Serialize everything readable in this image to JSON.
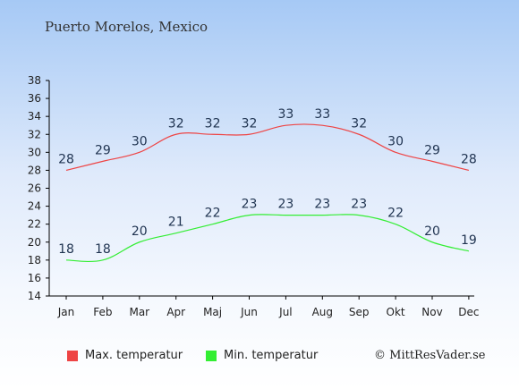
{
  "chart_data": {
    "type": "line",
    "title": "Puerto Morelos, Mexico",
    "categories": [
      "Jan",
      "Feb",
      "Mar",
      "Apr",
      "Maj",
      "Jun",
      "Jul",
      "Aug",
      "Sep",
      "Okt",
      "Nov",
      "Dec"
    ],
    "series": [
      {
        "name": "Max. temperatur",
        "color": "#ee4444",
        "values": [
          28,
          29,
          30,
          32,
          32,
          32,
          33,
          33,
          32,
          30,
          29,
          28
        ]
      },
      {
        "name": "Min. temperatur",
        "color": "#33ee33",
        "values": [
          18,
          18,
          20,
          21,
          22,
          23,
          23,
          23,
          23,
          22,
          20,
          19
        ]
      }
    ],
    "ylim": [
      14,
      38
    ],
    "yticks": [
      14,
      16,
      18,
      20,
      22,
      24,
      26,
      28,
      30,
      32,
      34,
      36,
      38
    ],
    "grid": false,
    "legend": "bottom"
  },
  "copyright": "© MittResVader.se"
}
